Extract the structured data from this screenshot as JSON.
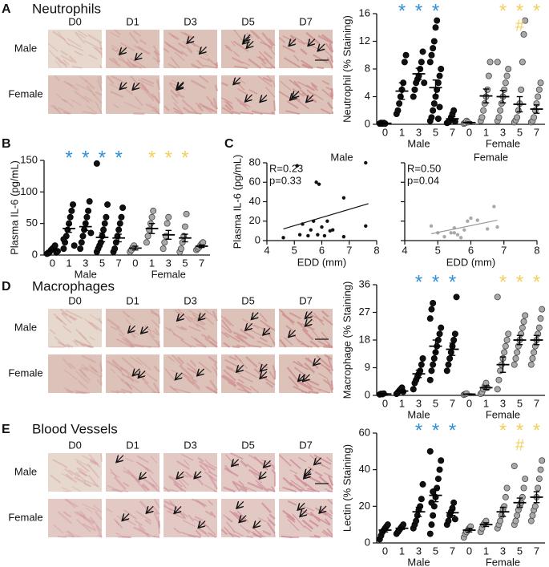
{
  "panels": [
    {
      "letter": "A",
      "title": "Neutrophils",
      "columns": [
        "D0",
        "D1",
        "D3",
        "D5",
        "D7"
      ],
      "rows": [
        "Male",
        "Female"
      ]
    },
    {
      "letter": "B"
    },
    {
      "letter": "C"
    },
    {
      "letter": "D",
      "title": "Macrophages",
      "columns": [
        "D0",
        "D1",
        "D3",
        "D5",
        "D7"
      ],
      "rows": [
        "Male",
        "Female"
      ]
    },
    {
      "letter": "E",
      "title": "Blood Vessels",
      "columns": [
        "D0",
        "D1",
        "D3",
        "D5",
        "D7"
      ],
      "rows": [
        "Male",
        "Female"
      ]
    }
  ],
  "chart_data": [
    {
      "type": "dot",
      "ylabel": "Neutrophil (% Staining)",
      "ylim": [
        0,
        16
      ],
      "yticks": [
        0,
        4,
        8,
        12,
        16
      ],
      "groups": [
        {
          "name": "Male",
          "color": "#111111",
          "star_color": "#2f8fd8",
          "categories": [
            "0",
            "1",
            "3",
            "5",
            "7"
          ],
          "points": [
            [
              0.1,
              0.2,
              0.1,
              0.2,
              0.1
            ],
            [
              1.5,
              2,
              3,
              4,
              5,
              6,
              9,
              10
            ],
            [
              4,
              5,
              6,
              6.5,
              7,
              8,
              9,
              10.5,
              6
            ],
            [
              0.5,
              1,
              2,
              3,
              4,
              5,
              6,
              7,
              8,
              9,
              10,
              11,
              12,
              14,
              15,
              0.8,
              2.5
            ],
            [
              0.2,
              0.3,
              0.5,
              1,
              1.5,
              2,
              0.4
            ]
          ],
          "means": [
            0.15,
            4.8,
            7.3,
            5.3,
            0.8
          ],
          "errors": [
            0.05,
            1.2,
            0.8,
            1.1,
            0.3
          ],
          "stars": [
            null,
            "*",
            "*",
            "*",
            null
          ]
        },
        {
          "name": "Female",
          "color": "#a9a9a9",
          "star_color": "#f3cf5c",
          "categories": [
            "0",
            "1",
            "3",
            "5",
            "7"
          ],
          "points": [
            [
              0.1,
              0.2,
              0.5,
              0.3
            ],
            [
              0.5,
              1,
              2,
              3,
              4,
              5,
              7,
              9
            ],
            [
              0.5,
              1,
              2,
              3,
              4,
              5,
              6,
              7,
              8,
              9
            ],
            [
              0.3,
              0.6,
              1,
              2,
              3,
              5,
              9,
              13,
              15
            ],
            [
              0.3,
              0.5,
              1,
              2,
              3,
              4,
              5,
              6
            ]
          ],
          "means": [
            0.25,
            4.1,
            4,
            2.9,
            2.2
          ],
          "errors": [
            0.1,
            1,
            0.9,
            1.1,
            0.6
          ],
          "stars": [
            null,
            null,
            "*",
            "*",
            "*"
          ],
          "hashes": [
            null,
            null,
            null,
            "#",
            null
          ]
        }
      ]
    },
    {
      "type": "dot",
      "ylabel": "Plasma IL-6 (pg/mL)",
      "ylim": [
        0,
        150
      ],
      "yticks": [
        0,
        50,
        100,
        150
      ],
      "groups": [
        {
          "name": "Male",
          "color": "#111111",
          "star_color": "#2f8fd8",
          "categories": [
            "0",
            "1",
            "3",
            "5",
            "7"
          ],
          "points": [
            [
              2,
              3,
              5,
              8,
              10,
              12,
              15,
              4,
              6
            ],
            [
              10,
              20,
              30,
              40,
              50,
              60,
              70,
              80,
              15,
              25
            ],
            [
              10,
              20,
              30,
              40,
              50,
              60,
              70,
              85,
              35
            ],
            [
              5,
              10,
              15,
              20,
              30,
              40,
              50,
              60,
              80,
              145
            ],
            [
              5,
              10,
              20,
              30,
              40,
              50,
              60,
              75
            ]
          ],
          "means": [
            7,
            42,
            45,
            28,
            27
          ],
          "errors": [
            1.5,
            6,
            6,
            7,
            6
          ],
          "stars": [
            null,
            "*",
            "*",
            "*",
            "*"
          ]
        },
        {
          "name": "Female",
          "color": "#a9a9a9",
          "star_color": "#f3cf5c",
          "categories": [
            "0",
            "1",
            "3",
            "5",
            "7"
          ],
          "points": [
            [
              5,
              8,
              12,
              15
            ],
            [
              20,
              30,
              40,
              50,
              60,
              70
            ],
            [
              10,
              20,
              30,
              50,
              60
            ],
            [
              5,
              10,
              20,
              30,
              45,
              65
            ],
            [
              8,
              10,
              12,
              15,
              18,
              20
            ]
          ],
          "means": [
            11,
            42,
            32,
            27,
            14
          ],
          "errors": [
            3,
            8,
            7,
            6,
            2
          ],
          "stars": [
            null,
            "*",
            "*",
            "*",
            null
          ]
        }
      ]
    },
    {
      "type": "scatter",
      "title": "Male",
      "ylabel": "Plasma IL-6 (pg/mL)",
      "xlabel": "EDD (mm)",
      "color": "#111111",
      "annotations": [
        "R=0.23",
        "p=0.33"
      ],
      "xlim": [
        4,
        8
      ],
      "xticks": [
        4,
        5,
        6,
        7,
        8
      ],
      "ylim": [
        0,
        80
      ],
      "yticks": [
        0,
        20,
        40,
        60,
        80
      ],
      "show_ytick_labels": true,
      "x": [
        4.6,
        5.1,
        5.2,
        5.3,
        5.5,
        5.6,
        5.7,
        5.8,
        5.85,
        5.9,
        6.0,
        6.1,
        6.2,
        6.3,
        6.4,
        6.8,
        6.8,
        7.6,
        7.6
      ],
      "y": [
        3,
        77,
        6,
        17,
        5,
        11,
        20,
        60,
        6,
        58,
        14,
        5,
        20,
        10,
        11,
        44,
        4,
        15,
        80
      ],
      "fit": {
        "x": [
          4.6,
          7.7
        ],
        "y": [
          12,
          38
        ]
      }
    },
    {
      "type": "scatter",
      "title": "Female",
      "xlabel": "EDD (mm)",
      "color": "#a9a9a9",
      "annotations": [
        "R=0.50",
        "p=0.04"
      ],
      "xlim": [
        4,
        8
      ],
      "xticks": [
        4,
        5,
        6,
        7,
        8
      ],
      "ylim": [
        0,
        80
      ],
      "yticks": [
        0,
        20,
        40,
        60,
        80
      ],
      "show_ytick_labels": false,
      "x": [
        4.8,
        5.0,
        5.2,
        5.4,
        5.5,
        5.6,
        5.7,
        5.8,
        5.9,
        6.0,
        6.2,
        6.5,
        6.7,
        6.8,
        5.5
      ],
      "y": [
        15,
        8,
        4,
        8,
        13,
        6,
        3,
        11,
        20,
        23,
        21,
        12,
        35,
        14,
        8
      ],
      "fit": {
        "x": [
          4.8,
          6.8
        ],
        "y": [
          7,
          21
        ]
      }
    },
    {
      "type": "dot",
      "ylabel": "Macrophage (% Staining)",
      "ylim": [
        0,
        36
      ],
      "yticks": [
        0,
        9,
        18,
        27,
        36
      ],
      "groups": [
        {
          "name": "Male",
          "color": "#111111",
          "star_color": "#2f8fd8",
          "categories": [
            "0",
            "1",
            "3",
            "5",
            "7"
          ],
          "points": [
            [
              0.3,
              0.5,
              0.4,
              0.6
            ],
            [
              0.5,
              1,
              1.5,
              2,
              2.5,
              1.2
            ],
            [
              2,
              4,
              5,
              6,
              7,
              8,
              10,
              12
            ],
            [
              5,
              8,
              10,
              12,
              14,
              16,
              18,
              20,
              22,
              25,
              28,
              30
            ],
            [
              8,
              10,
              12,
              14,
              16,
              18,
              20,
              32
            ]
          ],
          "means": [
            0.45,
            1.4,
            7,
            16,
            15
          ],
          "errors": [
            0.1,
            0.3,
            1.2,
            2,
            2
          ],
          "stars": [
            null,
            null,
            "*",
            "*",
            "*"
          ]
        },
        {
          "name": "Female",
          "color": "#a9a9a9",
          "star_color": "#f3cf5c",
          "categories": [
            "0",
            "1",
            "3",
            "5",
            "7"
          ],
          "points": [
            [
              0.2,
              0.4,
              0.6
            ],
            [
              0.5,
              1,
              2,
              3,
              4,
              2.5
            ],
            [
              2,
              5,
              8,
              10,
              12,
              14,
              16,
              18,
              20,
              32
            ],
            [
              10,
              12,
              14,
              16,
              18,
              20,
              22,
              24,
              26
            ],
            [
              10,
              12,
              14,
              16,
              18,
              20,
              22,
              25,
              28
            ]
          ],
          "means": [
            0.4,
            2.5,
            10,
            18,
            18
          ],
          "errors": [
            0.1,
            0.6,
            2.5,
            1.5,
            1.5
          ],
          "stars": [
            null,
            null,
            "*",
            "*",
            "*"
          ]
        }
      ]
    },
    {
      "type": "dot",
      "ylabel": "Lectin (% Staining)",
      "ylim": [
        0,
        60
      ],
      "yticks": [
        0,
        20,
        40,
        60
      ],
      "groups": [
        {
          "name": "Male",
          "color": "#111111",
          "star_color": "#2f8fd8",
          "categories": [
            "0",
            "1",
            "3",
            "5",
            "7"
          ],
          "points": [
            [
              2,
              4,
              6,
              7,
              8,
              9,
              10
            ],
            [
              5,
              6,
              7,
              8,
              9,
              10
            ],
            [
              8,
              10,
              12,
              15,
              18,
              20,
              24,
              32
            ],
            [
              5,
              10,
              15,
              20,
              25,
              30,
              35,
              40,
              45,
              50,
              22,
              28
            ],
            [
              10,
              12,
              15,
              17,
              19,
              22,
              13
            ]
          ],
          "means": [
            7,
            8,
            17,
            26,
            16.5
          ],
          "errors": [
            1,
            0.6,
            2.5,
            3.5,
            1.5
          ],
          "stars": [
            null,
            null,
            "*",
            "*",
            "*"
          ]
        },
        {
          "name": "Female",
          "color": "#a9a9a9",
          "star_color": "#f3cf5c",
          "categories": [
            "0",
            "1",
            "3",
            "5",
            "7"
          ],
          "points": [
            [
              3,
              5,
              6,
              7,
              8,
              9
            ],
            [
              6,
              8,
              10,
              11,
              12
            ],
            [
              8,
              10,
              12,
              15,
              18,
              20,
              25,
              30
            ],
            [
              10,
              12,
              15,
              18,
              20,
              22,
              25,
              30,
              35,
              42
            ],
            [
              12,
              15,
              18,
              20,
              25,
              30,
              35,
              40,
              45
            ]
          ],
          "means": [
            7,
            10,
            17,
            22,
            25
          ],
          "errors": [
            1,
            1,
            2.5,
            2.5,
            3
          ],
          "stars": [
            null,
            null,
            "*",
            "*",
            "*"
          ],
          "hashes": [
            null,
            null,
            null,
            "#",
            null
          ]
        }
      ]
    }
  ]
}
